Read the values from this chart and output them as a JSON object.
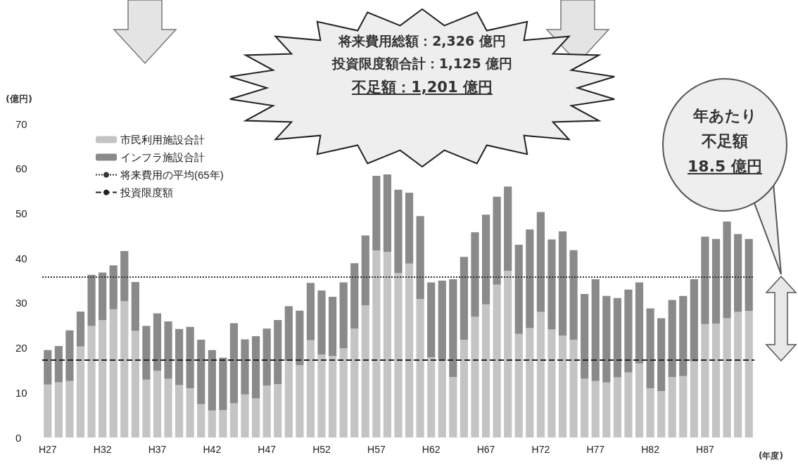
{
  "chart_data": {
    "type": "bar",
    "stacked": true,
    "categories": [
      "H27",
      null,
      null,
      null,
      null,
      "H32",
      null,
      null,
      null,
      null,
      "H37",
      null,
      null,
      null,
      null,
      "H42",
      null,
      null,
      null,
      null,
      "H47",
      null,
      null,
      null,
      null,
      "H52",
      null,
      null,
      null,
      null,
      "H57",
      null,
      null,
      null,
      null,
      "H62",
      null,
      null,
      null,
      null,
      "H67",
      null,
      null,
      null,
      null,
      "H72",
      null,
      null,
      null,
      null,
      "H77",
      null,
      null,
      null,
      null,
      "H82",
      null,
      null,
      null,
      null,
      "H87",
      null,
      null,
      null,
      null
    ],
    "ylabel": "(億円)",
    "xlabel": "(年度)",
    "ylim": [
      0,
      70
    ],
    "yticks": [
      0,
      10,
      20,
      30,
      40,
      50,
      60,
      70
    ],
    "grid": false,
    "legend": "top left",
    "series": [
      {
        "name": "市民利用施設合計",
        "color": "#c4c4c4",
        "values": [
          11.8,
          12.3,
          12.6,
          20.3,
          24.9,
          26.2,
          28.6,
          30.4,
          23.8,
          12.9,
          14.9,
          13.1,
          11.7,
          11.0,
          7.4,
          6.0,
          6.1,
          7.6,
          9.6,
          8.7,
          11.6,
          11.9,
          17.1,
          16.1,
          21.7,
          18.5,
          18.2,
          19.9,
          24.3,
          29.5,
          41.7,
          41.4,
          36.7,
          38.8,
          30.9,
          17.9,
          17.1,
          13.5,
          21.8,
          26.9,
          29.7,
          34.1,
          37.2,
          23.1,
          24.4,
          28.0,
          24.1,
          22.7,
          21.8,
          13.1,
          12.6,
          12.3,
          13.4,
          14.5,
          16.5,
          11.0,
          10.3,
          13.5,
          13.7,
          17.0,
          25.3,
          25.4,
          26.6,
          28.0,
          28.2
        ]
      },
      {
        "name": "インフラ施設合計",
        "color": "#8a8a8a",
        "values": [
          7.7,
          8.1,
          11.3,
          7.8,
          11.4,
          10.6,
          9.8,
          11.2,
          10.9,
          12.0,
          12.8,
          12.8,
          12.5,
          13.7,
          14.4,
          13.5,
          11.7,
          17.9,
          12.3,
          13.9,
          12.7,
          14.3,
          12.2,
          12.2,
          12.8,
          14.3,
          13.2,
          14.7,
          14.6,
          15.6,
          16.7,
          17.3,
          18.6,
          15.8,
          18.5,
          16.7,
          17.9,
          21.8,
          18.5,
          18.9,
          20.0,
          19.6,
          18.8,
          19.9,
          22.0,
          22.3,
          20.1,
          23.3,
          20.0,
          18.9,
          22.7,
          19.3,
          17.7,
          18.5,
          18.1,
          17.8,
          16.3,
          17.2,
          17.9,
          18.3,
          19.5,
          18.9,
          21.6,
          17.4,
          16.1
        ]
      }
    ],
    "ref_lines": [
      {
        "axis": "y",
        "value": 35.8,
        "label": "将来費用の平均(65年)",
        "line_style": "dotted",
        "color": "#333333"
      },
      {
        "axis": "y",
        "value": 17.3,
        "label": "投資限度額",
        "line_style": "dashed",
        "color": "#222222"
      }
    ],
    "annotations": [
      "将来費用総額：2,326 億円",
      "投資限度額合計：1,125 億円",
      "不足額：1,201 億円",
      "年あたり",
      "不足額",
      "18.5 億円"
    ]
  }
}
